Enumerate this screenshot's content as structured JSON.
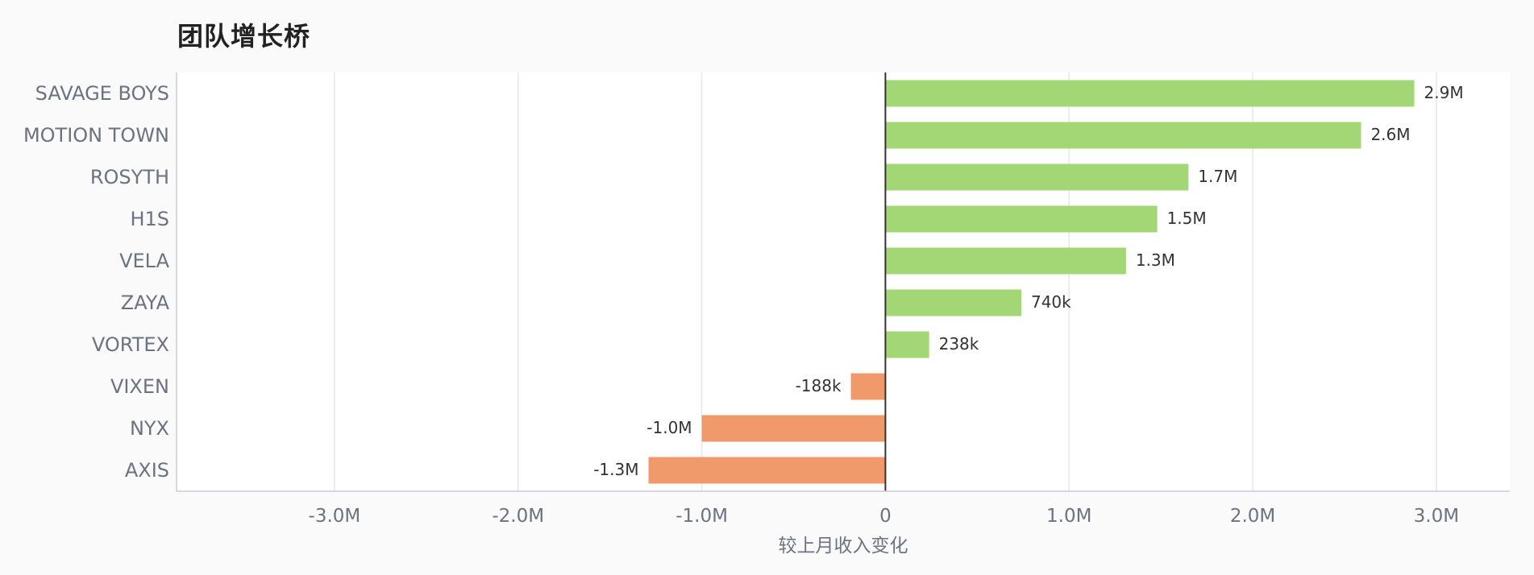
{
  "chart_data": {
    "type": "bar",
    "orientation": "horizontal",
    "title": "团队增长桥",
    "xlabel": "较上月收入变化",
    "ylabel": "",
    "categories": [
      "SAVAGE BOYS",
      "MOTION TOWN",
      "ROSYTH",
      "H1S",
      "VELA",
      "ZAYA",
      "VORTEX",
      "VIXEN",
      "NYX",
      "AXIS"
    ],
    "values": [
      2880000,
      2590000,
      1650000,
      1480000,
      1310000,
      740000,
      238000,
      -188000,
      -1000000,
      -1290000
    ],
    "value_labels": [
      "2.9M",
      "2.6M",
      "1.7M",
      "1.5M",
      "1.3M",
      "740k",
      "238k",
      "-188k",
      "-1.0M",
      "-1.3M"
    ],
    "xlim": [
      -3860000,
      3400000
    ],
    "x_ticks": [
      -3000000,
      -2000000,
      -1000000,
      0,
      1000000,
      2000000,
      3000000
    ],
    "x_tick_labels": [
      "-3.0M",
      "-2.0M",
      "-1.0M",
      "0",
      "1.0M",
      "2.0M",
      "3.0M"
    ],
    "grid": true,
    "legend": "none",
    "colors": {
      "positive": "#a3d674",
      "negative": "#f0996b",
      "gridline": "#e5e7eb",
      "zero_line": "#333333",
      "axis_line": "#c9cbd6"
    }
  }
}
